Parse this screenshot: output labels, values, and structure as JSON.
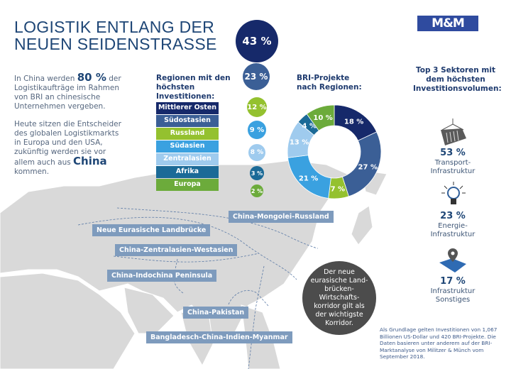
{
  "header": {
    "title_line1": "LOGISTIK ENTLANG DER",
    "title_line2": "NEUEN SEIDENSTRASSE",
    "logo": "M&M"
  },
  "intro": {
    "p1_pre": "In China werden ",
    "p1_big": "80 %",
    "p1_post": " der Logistikaufträge im Rahmen von BRI an chinesische Unternehmen vergeben.",
    "p2_pre": "Heute sitzen die Entscheider des globalen Logistikmarkts in Europa und den USA, zukünftig werden sie vor allem auch aus ",
    "p2_big": "China",
    "p2_post": " kommen."
  },
  "regions": {
    "heading": "Regionen mit den höchsten Investitionen:",
    "items": [
      {
        "label": "Mittlerer Osten",
        "value": "43 %",
        "color": "#16296a"
      },
      {
        "label": "Südostasien",
        "value": "23 %",
        "color": "#3b5f96"
      },
      {
        "label": "Russland",
        "value": "12 %",
        "color": "#94c12f"
      },
      {
        "label": "Südasien",
        "value": "9 %",
        "color": "#3aa1e0"
      },
      {
        "label": "Zentralasien",
        "value": "8 %",
        "color": "#9fcbee"
      },
      {
        "label": "Afrika",
        "value": "3 %",
        "color": "#1b6a97"
      },
      {
        "label": "Europa",
        "value": "2 %",
        "color": "#6cab3b"
      }
    ]
  },
  "chart_data": {
    "type": "pie",
    "title": "BRI-Projekte nach Regionen:",
    "values": [
      18,
      27,
      7,
      21,
      13,
      4,
      10
    ],
    "labels": [
      "18 %",
      "27 %",
      "7 %",
      "21 %",
      "13 %",
      "4 %",
      "10 %"
    ],
    "colors": [
      "#16296a",
      "#3b5f96",
      "#94c12f",
      "#3aa1e0",
      "#9fcbee",
      "#1b6a97",
      "#6cab3b"
    ]
  },
  "sectors": {
    "heading": "Top 3 Sektoren mit dem höchsten Investitionsvolumen:",
    "items": [
      {
        "pct": "53 %",
        "l1": "Transport-",
        "l2": "Infrastruktur",
        "icon": "container-icon"
      },
      {
        "pct": "23 %",
        "l1": "Energie-",
        "l2": "Infrastruktur",
        "icon": "lightbulb-icon"
      },
      {
        "pct": "17 %",
        "l1": "Infrastruktur",
        "l2": "Sonstiges",
        "icon": "map-pin-icon"
      }
    ]
  },
  "routes": [
    "China-Mongolei-Russland",
    "Neue Eurasische Landbrücke",
    "China-Zentralasien-Westasien",
    "China-Indochina Peninsula",
    "China-Pakistan",
    "Bangladesch-China-Indien-Myanmar"
  ],
  "callout": "Der neue eurasische Land-brücken-Wirtschafts-korridor gilt als der wichtigste Korridor.",
  "footnote": "Als Grundlage gelten Investitionen von 1,067 Billionen US-Dollar und 420 BRI-Projekte. Die Daten basieren unter anderem auf der BRI-Marktanalyse von Militzer & Münch vom September 2018."
}
